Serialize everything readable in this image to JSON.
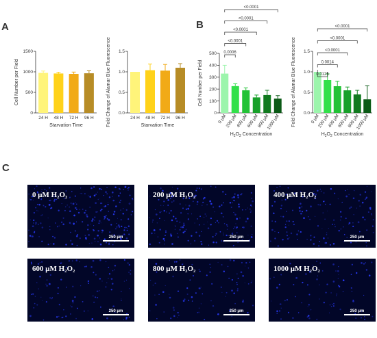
{
  "panels": {
    "a": "A",
    "b": "B",
    "c": "C"
  },
  "chart_data": [
    {
      "id": "A1",
      "type": "bar",
      "categories": [
        "24 H",
        "48 H",
        "72 H",
        "96 H"
      ],
      "values": [
        975,
        960,
        950,
        965
      ],
      "errors": [
        45,
        30,
        45,
        60
      ],
      "colors": [
        "#fff47a",
        "#ffd21a",
        "#f1aa17",
        "#b78c26"
      ],
      "xlabel": "Starvation Time",
      "ylabel": "Cell Number per Field",
      "ylim": [
        0,
        1500
      ],
      "yticks": [
        0,
        500,
        1000,
        1500
      ],
      "ytick_labels": [
        "0",
        "500",
        "1000",
        "1500"
      ],
      "comparisons": []
    },
    {
      "id": "A2",
      "type": "bar",
      "categories": [
        "24 H",
        "48 H",
        "72 H",
        "96 H"
      ],
      "values": [
        1.0,
        1.04,
        1.03,
        1.1
      ],
      "errors": [
        0.0,
        0.15,
        0.15,
        0.1
      ],
      "colors": [
        "#fff47a",
        "#ffd21a",
        "#f1aa17",
        "#b78c26"
      ],
      "xlabel": "Starvation Time",
      "ylabel": "Fold Change of Alamar Blue Fluorescence",
      "ylim": [
        0,
        1.5
      ],
      "yticks": [
        0,
        0.5,
        1.0,
        1.5
      ],
      "ytick_labels": [
        "0.0",
        "0.5",
        "1.0",
        "1.5"
      ],
      "comparisons": []
    },
    {
      "id": "B1",
      "type": "bar",
      "categories": [
        "0 μM",
        "200 μM",
        "400 μM",
        "600 μM",
        "800 μM",
        "1000 μM"
      ],
      "values": [
        330,
        225,
        190,
        130,
        150,
        120
      ],
      "errors": [
        70,
        20,
        20,
        20,
        40,
        25
      ],
      "colors": [
        "#9cf5ac",
        "#32e04a",
        "#22c236",
        "#18a02a",
        "#117a1f",
        "#0b5a16"
      ],
      "xlabel": "H2O2 Concentration",
      "ylabel": "Cell Number per Field",
      "ylim": [
        0,
        500
      ],
      "yticks": [
        0,
        100,
        200,
        300,
        400,
        500
      ],
      "ytick_labels": [
        "0",
        "100",
        "200",
        "300",
        "400",
        "500"
      ],
      "comparisons": [
        {
          "from": 0,
          "to": 1,
          "label": "0.0006"
        },
        {
          "from": 0,
          "to": 2,
          "label": "<0.0001"
        },
        {
          "from": 0,
          "to": 3,
          "label": "<0.0001"
        },
        {
          "from": 0,
          "to": 4,
          "label": "<0.0001"
        },
        {
          "from": 0,
          "to": 5,
          "label": "<0.0001"
        }
      ]
    },
    {
      "id": "B2",
      "type": "bar",
      "categories": [
        "0 μM",
        "200 μM",
        "400 μM",
        "600 μM",
        "800 μM",
        "1000 μM"
      ],
      "values": [
        1.0,
        0.8,
        0.65,
        0.55,
        0.45,
        0.33
      ],
      "errors": [
        0.0,
        0.15,
        0.12,
        0.08,
        0.1,
        0.33
      ],
      "colors": [
        "#9cf5ac",
        "#32e04a",
        "#22c236",
        "#18a02a",
        "#117a1f",
        "#0b5a16"
      ],
      "xlabel": "H2O2 Concentration",
      "ylabel": "Fold Change of Alamar Blue Fluorescence",
      "ylim": [
        0,
        1.5
      ],
      "yticks": [
        0,
        0.5,
        1.0,
        1.5
      ],
      "ytick_labels": [
        "0.0",
        "0.5",
        "1.0",
        "1.5"
      ],
      "comparisons": [
        {
          "from": 0,
          "to": 1,
          "label": "0.0125"
        },
        {
          "from": 0,
          "to": 2,
          "label": "0.0014"
        },
        {
          "from": 0,
          "to": 3,
          "label": "<0.0001"
        },
        {
          "from": 0,
          "to": 4,
          "label": "<0.0001"
        },
        {
          "from": 0,
          "to": 5,
          "label": "<0.0001"
        }
      ]
    }
  ],
  "micrographs": [
    {
      "label": "0 μM H₂O₂",
      "scale": "250 μm",
      "density": 1.0
    },
    {
      "label": "200 μM H₂O₂",
      "scale": "250 μm",
      "density": 0.8
    },
    {
      "label": "400 μM H₂O₂",
      "scale": "250 μm",
      "density": 0.6
    },
    {
      "label": "600 μM H₂O₂",
      "scale": "250 μm",
      "density": 0.45
    },
    {
      "label": "800 μM H₂O₂",
      "scale": "250 μm",
      "density": 0.4
    },
    {
      "label": "1000 μM H₂O₂",
      "scale": "250 μm",
      "density": 0.35
    }
  ],
  "colors": {
    "axis": "#333333",
    "micrograph_bg": "#020628",
    "nuclei": "#2a3cff"
  }
}
